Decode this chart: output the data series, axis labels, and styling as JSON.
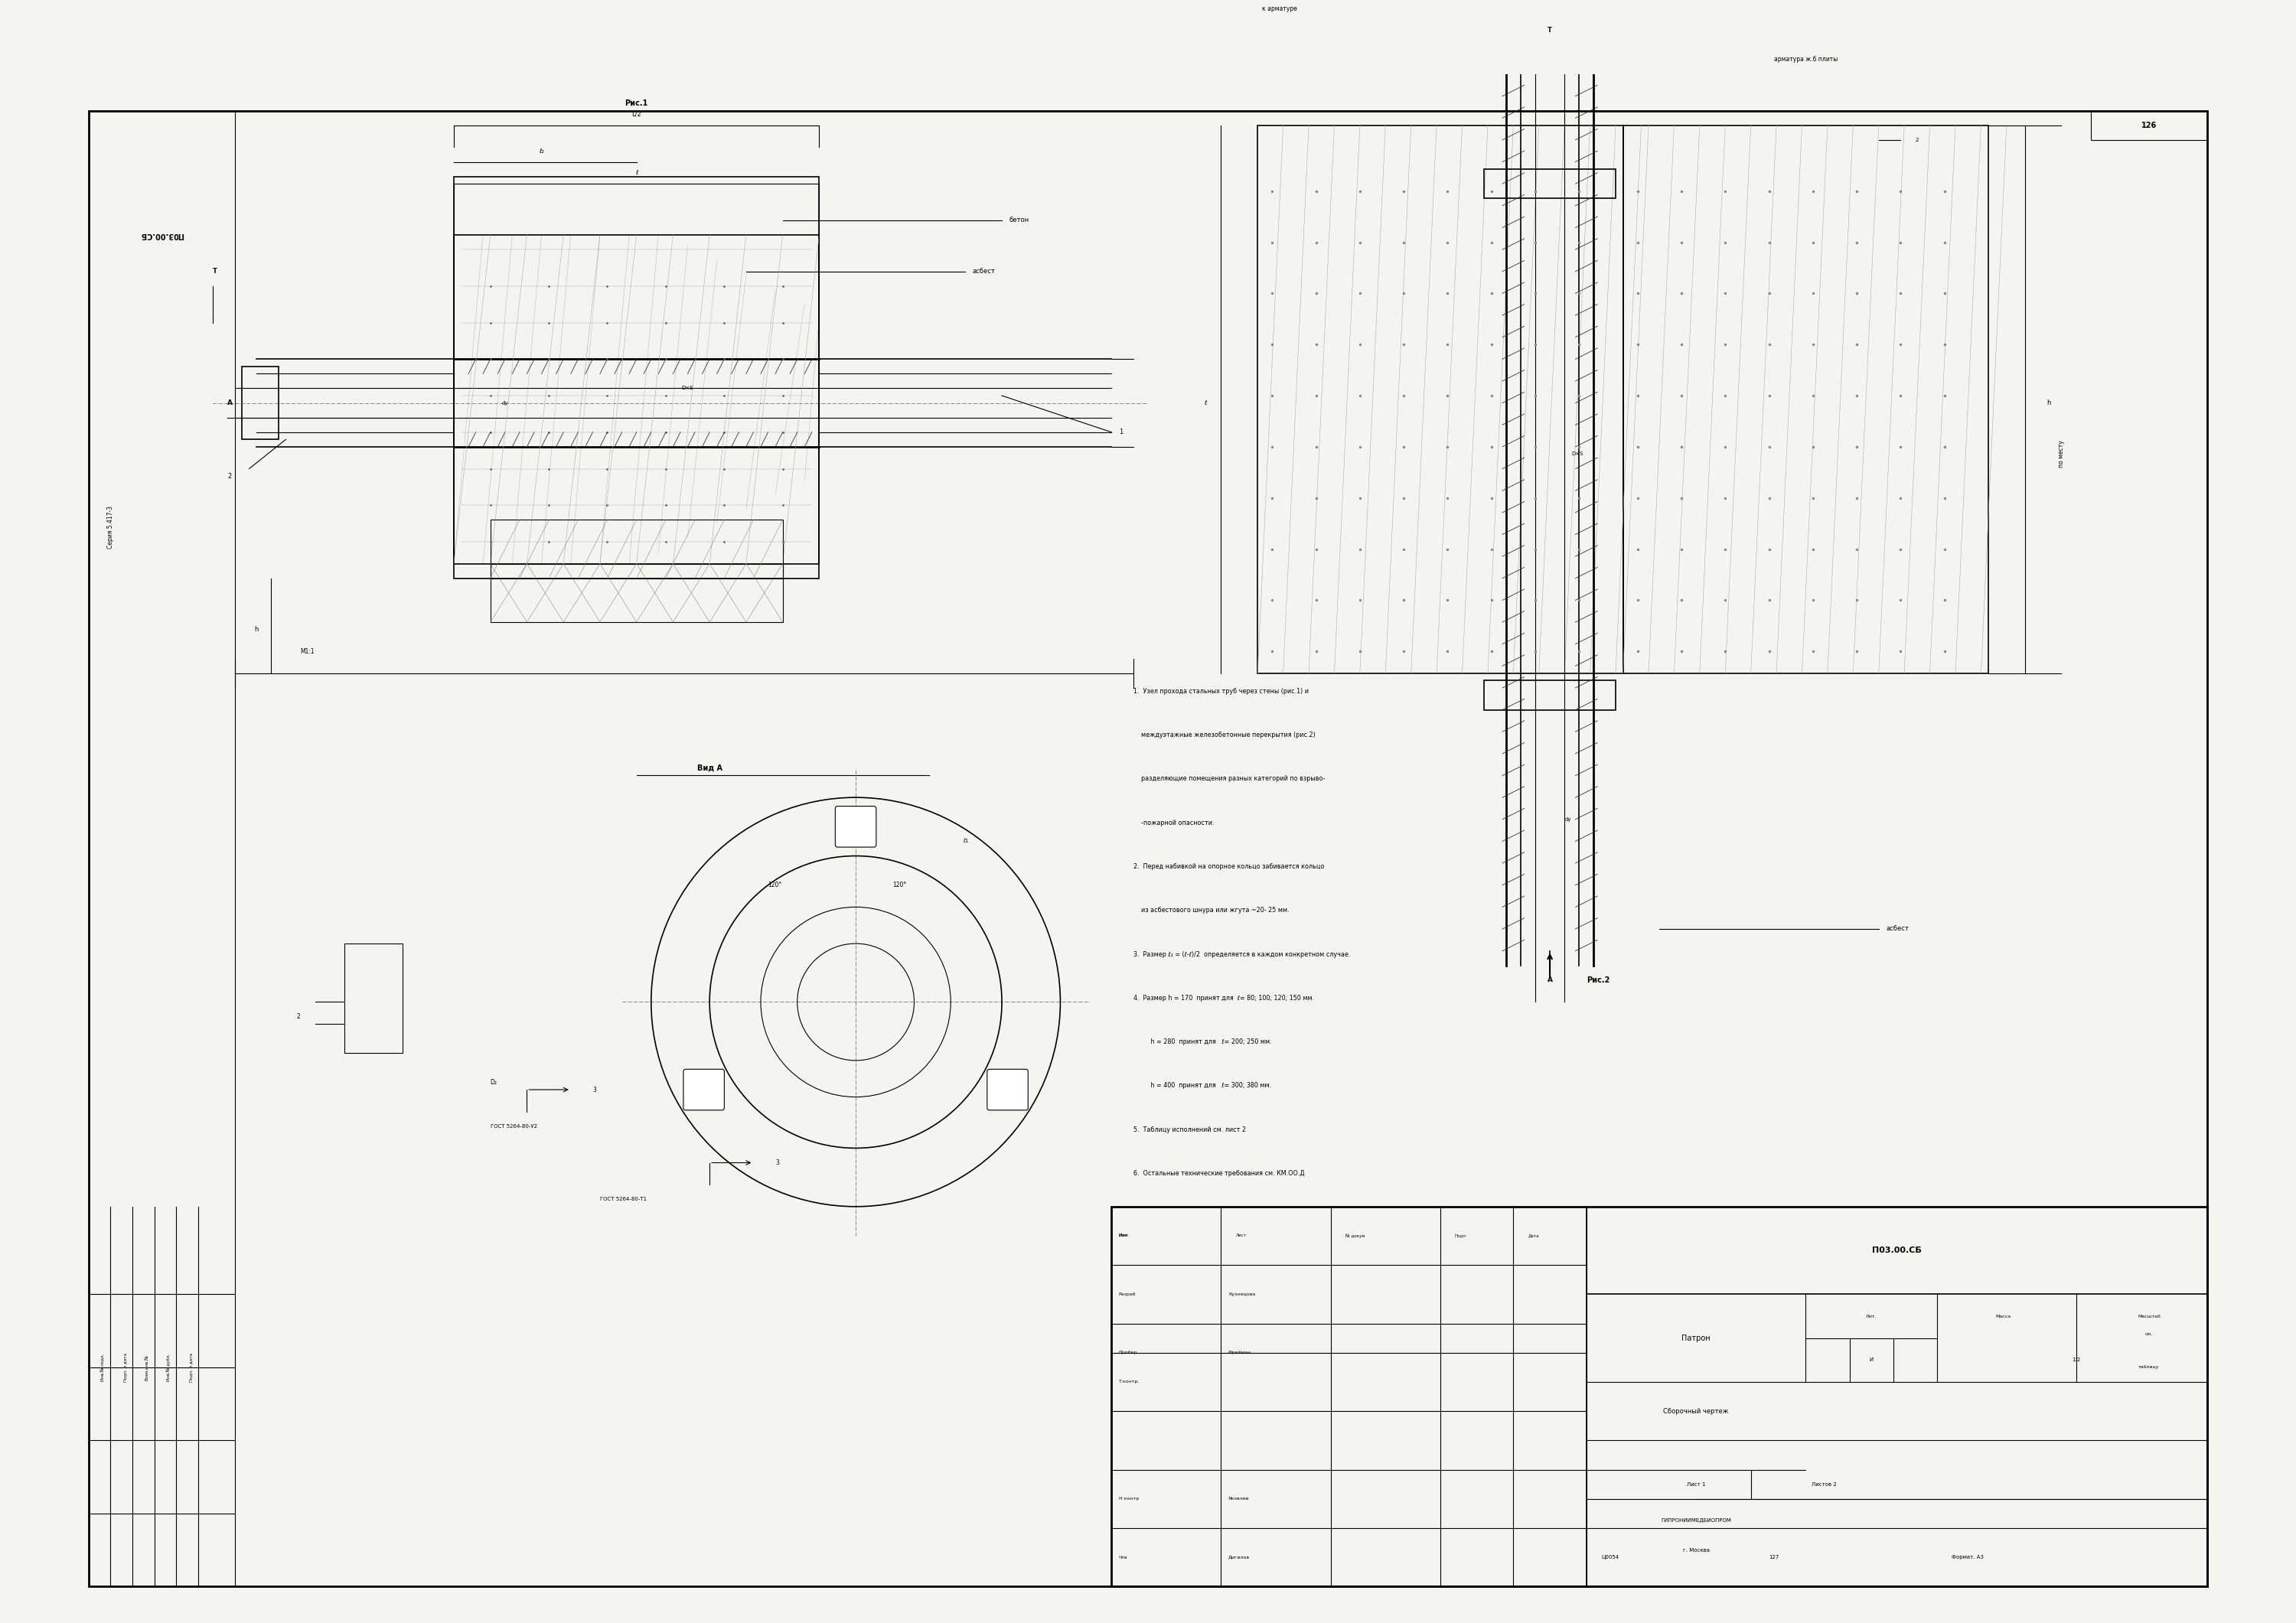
{
  "bg_color": "#f5f5f0",
  "line_color": "#000000",
  "border_color": "#000000",
  "title_stamp": "П03.00.СБ",
  "series_label": "Серия 5.417-3",
  "drawing_number_rotated": "П03.00.СБ",
  "fig_width": 30.0,
  "fig_height": 21.21,
  "notes": [
    "1. Узел прохода стальных труб через стены (рис.1) и",
    "   междуэтажные железобетонные перекрытия (рис.2)",
    "   разделяющие помещения разных категорий по взрыво-",
    "   -пожарной опасности.",
    "2. Перед набивкой на опорное кольцо забивается кольцо",
    "   из асбестового шнура или жгута ~20- 25 мм.",
    "3. Размер ℓ₂ = ℓ-ℓ  определяется в каждом конкретном случае.",
    "          2",
    "4. Размер h = 170  принят для ℓ= 80; 100; 120; 150 мм.",
    "          h = 280  принят для  ℓ= 200; 250 мм.",
    "          h = 400  принят для  ℓ= 300; 380 мм.",
    "5. Таблицу исполнений см. лист 2",
    "6. Остальные технические требования см. КМ.ОО.Д"
  ],
  "stamp_rows": [
    [
      "Изм",
      "Лист",
      "№ докум",
      "Подп",
      "Дата"
    ],
    [
      "Разраб",
      "Кузнецова",
      "",
      "",
      ""
    ],
    [
      "Пробер",
      "Фрейман",
      "",
      "",
      ""
    ],
    [
      "Т.контр.",
      "",
      "",
      "",
      ""
    ],
    [
      "",
      "",
      "",
      "",
      ""
    ],
    [
      "Н контр",
      "Яковлев",
      "",
      "",
      ""
    ],
    [
      "Чтв",
      "Дигилов",
      "",
      "",
      ""
    ]
  ],
  "stamp_title": "Патрон",
  "stamp_subtitle": "Сборочный чертеж",
  "stamp_code": "П03.00.СБ",
  "stamp_scale": "1:2",
  "stamp_sheet": "Лист 1",
  "stamp_sheets": "Листов 2",
  "stamp_org": "ГИПРОНИИМЕДБИОПРОМ\nг. Москва",
  "stamp_doc_num": "Ц0054",
  "stamp_ref": "127",
  "stamp_format": "Формат. А3",
  "page_num": "126",
  "масса_label": "Масса",
  "масштаб_label": "Масштаб",
  "lит_label": "Лит.",
  "scale_value": "см.\nтаблицу",
  "lит_value": "И"
}
